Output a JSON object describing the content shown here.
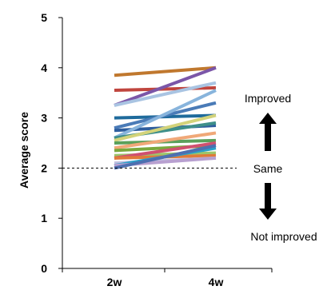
{
  "chart_data": {
    "type": "line",
    "title": "",
    "xlabel": "",
    "ylabel": "Average score",
    "categories": [
      "2w",
      "4w"
    ],
    "ylim": [
      0,
      5
    ],
    "yticks": [
      "0",
      "1",
      "2",
      "3",
      "4",
      "5"
    ],
    "grid": false,
    "reference_line": {
      "y": 2,
      "style": "dashed"
    },
    "annotations": {
      "improved": "Improved",
      "same": "Same",
      "not_improved": "Not improved"
    },
    "series": [
      {
        "values": [
          3.85,
          4.0
        ],
        "color": "#c0782e"
      },
      {
        "values": [
          3.55,
          3.6
        ],
        "color": "#c0453e"
      },
      {
        "values": [
          3.25,
          4.0
        ],
        "color": "#7b56a8"
      },
      {
        "values": [
          3.25,
          3.7
        ],
        "color": "#a9c4e2"
      },
      {
        "values": [
          3.0,
          3.05
        ],
        "color": "#1f6b9c"
      },
      {
        "values": [
          2.8,
          3.3
        ],
        "color": "#4a7bb7"
      },
      {
        "values": [
          2.75,
          2.85
        ],
        "color": "#2e5e9e"
      },
      {
        "values": [
          2.6,
          3.55
        ],
        "color": "#88b4dc"
      },
      {
        "values": [
          2.6,
          2.9
        ],
        "color": "#3e8f8a"
      },
      {
        "values": [
          2.55,
          3.05
        ],
        "color": "#d3d37a"
      },
      {
        "values": [
          2.5,
          2.55
        ],
        "color": "#5aa05a"
      },
      {
        "values": [
          2.4,
          2.7
        ],
        "color": "#f0a878"
      },
      {
        "values": [
          2.35,
          2.45
        ],
        "color": "#7aa83c"
      },
      {
        "values": [
          2.25,
          2.3
        ],
        "color": "#9dc56a"
      },
      {
        "values": [
          2.2,
          2.5
        ],
        "color": "#d05070"
      },
      {
        "values": [
          2.2,
          2.25
        ],
        "color": "#e07a3a"
      },
      {
        "values": [
          2.1,
          2.2
        ],
        "color": "#c0bfe0"
      },
      {
        "values": [
          2.05,
          2.4
        ],
        "color": "#2aa0c8"
      },
      {
        "values": [
          2.05,
          2.2
        ],
        "color": "#b8a0d0"
      },
      {
        "values": [
          2.0,
          2.45
        ],
        "color": "#4e6fb0"
      }
    ]
  }
}
